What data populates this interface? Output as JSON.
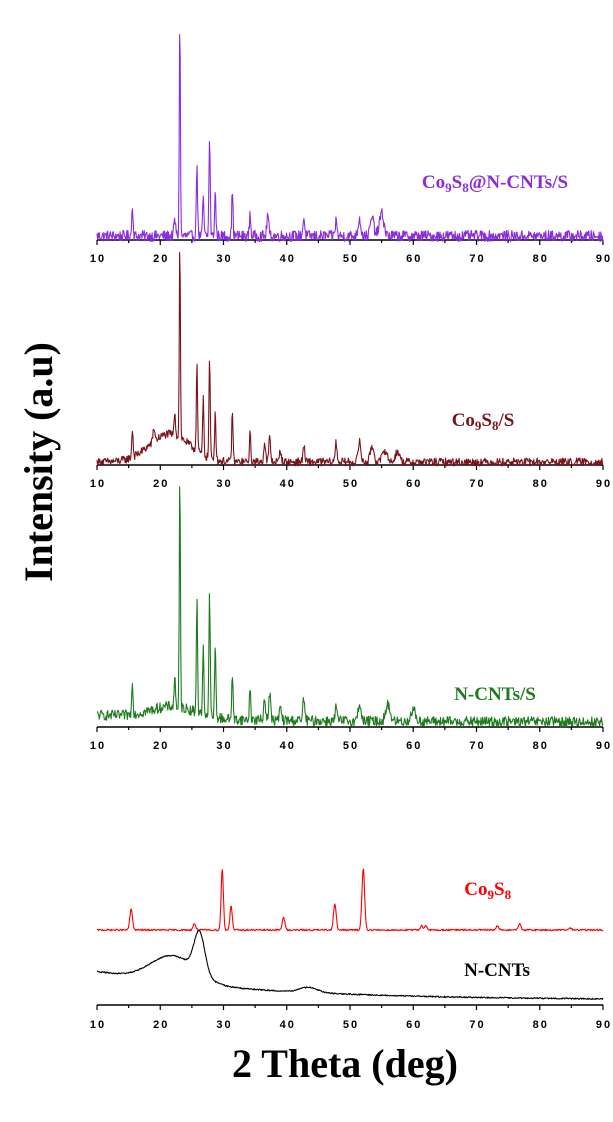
{
  "chart_data": {
    "type": "line",
    "xlabel": "2 Theta (deg)",
    "ylabel": "Intensity (a.u)",
    "xlim": [
      10,
      90
    ],
    "xticks": [
      10,
      20,
      30,
      40,
      50,
      60,
      70,
      80,
      90
    ],
    "panels": [
      {
        "series": [
          {
            "label_parts": [
              {
                "t": "Co"
              },
              {
                "t": "9",
                "sub": true
              },
              {
                "t": "S"
              },
              {
                "t": "8",
                "sub": true
              },
              {
                "t": "@N-CNTs/S"
              }
            ],
            "color": "#8a2be2",
            "baseline": 0.05,
            "noise": 0.025,
            "hump": null,
            "decay": null,
            "peaks": [
              [
                15.6,
                0.14,
                0.15
              ],
              [
                22.3,
                0.07,
                0.2
              ],
              [
                23.1,
                1.0,
                0.12
              ],
              [
                25.8,
                0.33,
                0.14
              ],
              [
                26.8,
                0.18,
                0.14
              ],
              [
                27.8,
                0.45,
                0.14
              ],
              [
                28.7,
                0.2,
                0.14
              ],
              [
                31.4,
                0.2,
                0.14
              ],
              [
                34.2,
                0.1,
                0.15
              ],
              [
                37.0,
                0.1,
                0.2
              ],
              [
                42.7,
                0.08,
                0.2
              ],
              [
                47.8,
                0.07,
                0.2
              ],
              [
                51.5,
                0.08,
                0.3
              ],
              [
                53.5,
                0.08,
                0.4
              ],
              [
                55.0,
                0.1,
                0.5
              ]
            ]
          }
        ]
      },
      {
        "series": [
          {
            "label_parts": [
              {
                "t": "Co"
              },
              {
                "t": "9",
                "sub": true
              },
              {
                "t": "S"
              },
              {
                "t": "8",
                "sub": true
              },
              {
                "t": "/S"
              }
            ],
            "color": "#7b1218",
            "baseline": 0.04,
            "noise": 0.02,
            "hump": [
              21.5,
              0.14,
              4.5
            ],
            "decay": null,
            "peaks": [
              [
                15.6,
                0.14,
                0.15
              ],
              [
                19.0,
                0.07,
                0.2
              ],
              [
                22.3,
                0.12,
                0.15
              ],
              [
                23.1,
                1.0,
                0.12
              ],
              [
                25.8,
                0.44,
                0.14
              ],
              [
                26.8,
                0.28,
                0.14
              ],
              [
                27.8,
                0.5,
                0.14
              ],
              [
                28.7,
                0.25,
                0.14
              ],
              [
                31.4,
                0.26,
                0.14
              ],
              [
                34.2,
                0.14,
                0.15
              ],
              [
                36.5,
                0.1,
                0.2
              ],
              [
                37.3,
                0.12,
                0.2
              ],
              [
                39.0,
                0.06,
                0.2
              ],
              [
                42.7,
                0.08,
                0.2
              ],
              [
                47.8,
                0.1,
                0.2
              ],
              [
                51.5,
                0.1,
                0.3
              ],
              [
                53.5,
                0.08,
                0.4
              ],
              [
                55.5,
                0.06,
                0.5
              ],
              [
                57.5,
                0.05,
                0.5
              ]
            ]
          }
        ]
      },
      {
        "series": [
          {
            "label_parts": [
              {
                "t": "N-CNTs/S"
              }
            ],
            "color": "#1d7a1d",
            "baseline": 0.06,
            "noise": 0.022,
            "hump": [
              22,
              0.05,
              5
            ],
            "decay": [
              0.03,
              20
            ],
            "peaks": [
              [
                15.6,
                0.14,
                0.15
              ],
              [
                22.3,
                0.13,
                0.15
              ],
              [
                23.1,
                1.0,
                0.12
              ],
              [
                25.8,
                0.48,
                0.14
              ],
              [
                26.8,
                0.3,
                0.14
              ],
              [
                27.8,
                0.53,
                0.14
              ],
              [
                28.7,
                0.31,
                0.14
              ],
              [
                31.4,
                0.2,
                0.14
              ],
              [
                34.2,
                0.14,
                0.15
              ],
              [
                36.5,
                0.1,
                0.2
              ],
              [
                37.3,
                0.12,
                0.2
              ],
              [
                39.0,
                0.06,
                0.2
              ],
              [
                42.7,
                0.1,
                0.2
              ],
              [
                47.8,
                0.06,
                0.2
              ],
              [
                51.5,
                0.08,
                0.3
              ],
              [
                56.0,
                0.07,
                0.5
              ],
              [
                60.0,
                0.05,
                0.5
              ]
            ]
          }
        ]
      },
      {
        "series": [
          {
            "label_parts": [
              {
                "t": "Co"
              },
              {
                "t": "9",
                "sub": true
              },
              {
                "t": "S"
              },
              {
                "t": "8",
                "sub": true
              }
            ],
            "color": "#ff0000",
            "baseline": 0.72,
            "noise": 0.004,
            "hump": null,
            "decay": null,
            "peaks": [
              [
                15.4,
                0.1,
                0.3
              ],
              [
                25.4,
                0.03,
                0.3
              ],
              [
                29.8,
                0.3,
                0.25
              ],
              [
                31.2,
                0.12,
                0.25
              ],
              [
                39.5,
                0.06,
                0.3
              ],
              [
                47.6,
                0.13,
                0.3
              ],
              [
                52.1,
                0.3,
                0.3
              ],
              [
                61.3,
                0.02,
                0.3
              ],
              [
                62.0,
                0.02,
                0.3
              ],
              [
                73.3,
                0.02,
                0.3
              ],
              [
                76.8,
                0.03,
                0.3
              ],
              [
                84.8,
                0.01,
                0.3
              ]
            ]
          },
          {
            "label_parts": [
              {
                "t": "N-CNTs"
              }
            ],
            "color": "#000000",
            "baseline": 0.06,
            "noise": 0.003,
            "hump": [
              22,
              0.13,
              5
            ],
            "decay": [
              0.14,
              25
            ],
            "peaks": [
              [
                26.2,
                0.2,
                1.2
              ],
              [
                43.5,
                0.025,
                2
              ]
            ]
          }
        ]
      }
    ]
  }
}
